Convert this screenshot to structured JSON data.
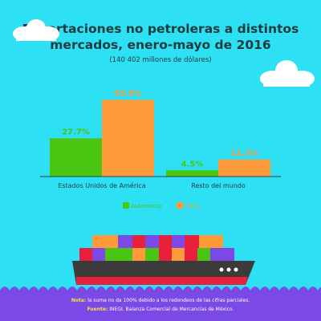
{
  "header": {
    "title_line1": "Exportaciones no petroleras a distintos",
    "title_line2": "mercados, enero-mayo de 2016",
    "subtitle": "(140 402 millones de dólares)"
  },
  "colors": {
    "background": "#2ee0f3",
    "automotriz": "#49c512",
    "otros": "#ff9a3b",
    "sea": "#7b49e6",
    "hull": "#3b3b3b",
    "hull_stripe": "#e8203c",
    "note_label": "#ffe23b"
  },
  "chart_data": {
    "type": "bar",
    "categories": [
      "Estados Unidos de América",
      "Resto del mundo"
    ],
    "series": [
      {
        "name": "Automotriz",
        "values": [
          27.7,
          4.5
        ],
        "labels": [
          "27.7%",
          "4.5%"
        ]
      },
      {
        "name": "Otros",
        "values": [
          55.6,
          12.3
        ],
        "labels": [
          "55.6%",
          "12.3%"
        ]
      }
    ],
    "unit": "%",
    "legend": "bottom-center",
    "grid": false
  },
  "footer": {
    "note_label": "Nota:",
    "note_text": "la suma no da 100% debido a los redondeos de las cifras parciales.",
    "source_label": "Fuente:",
    "source_text": "INEGI. Balanza Comercial de Mercancías de México."
  }
}
